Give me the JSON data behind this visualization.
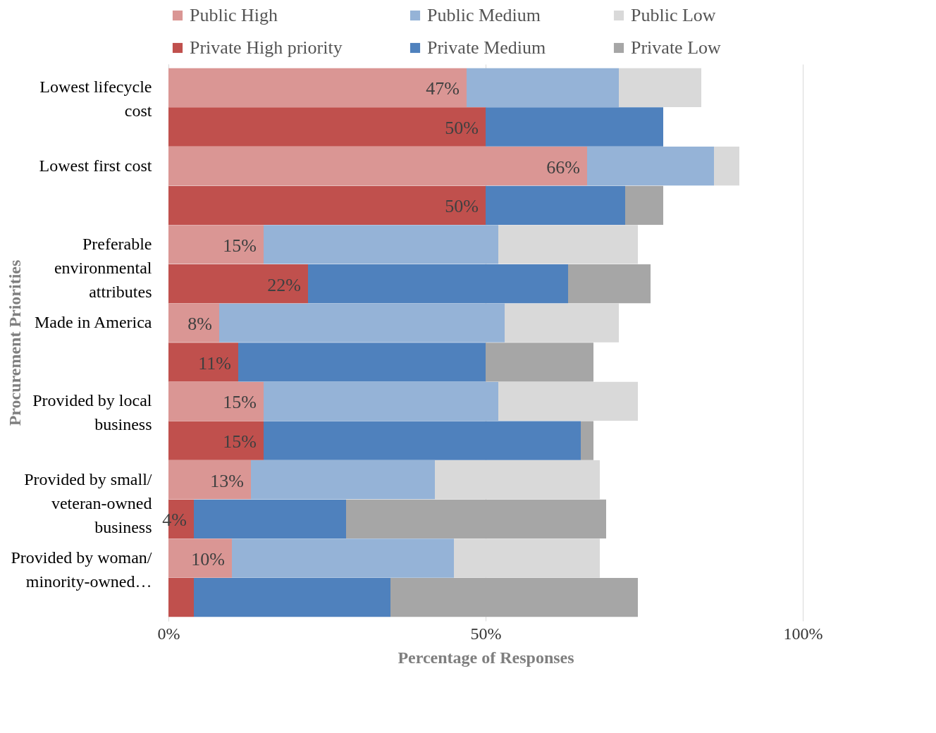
{
  "chart_data": {
    "type": "bar",
    "orientation": "horizontal",
    "stacked": true,
    "xlabel": "Percentage of Responses",
    "ylabel": "Procurement Priorities",
    "categories": [
      "Lowest lifecycle cost",
      null,
      "Lowest first cost",
      null,
      "Preferable environmental attributes",
      null,
      "Made in America",
      null,
      "Provided by local business",
      null,
      "Provided by small/ veteran-owned business",
      null,
      "Provided by woman/ minority-owned…",
      null
    ],
    "series": [
      {
        "name": "Public High",
        "color": "#da9694",
        "values": [
          47,
          null,
          66,
          null,
          15,
          null,
          8,
          null,
          15,
          null,
          13,
          null,
          10,
          null
        ],
        "value_labels": [
          "47%",
          null,
          "66%",
          null,
          "15%",
          null,
          "8%",
          null,
          "15%",
          null,
          "13%",
          null,
          "10%",
          null
        ]
      },
      {
        "name": "Public Medium",
        "color": "#95b3d7",
        "values": [
          24,
          null,
          20,
          null,
          37,
          null,
          45,
          null,
          37,
          null,
          29,
          null,
          35,
          null
        ]
      },
      {
        "name": "Public Low",
        "color": "#d9d9d9",
        "values": [
          13,
          null,
          4,
          null,
          22,
          null,
          18,
          null,
          22,
          null,
          26,
          null,
          23,
          null
        ]
      },
      {
        "name": "Private High priority",
        "color": "#c0504d",
        "values": [
          null,
          50,
          null,
          50,
          null,
          22,
          null,
          11,
          null,
          15,
          null,
          4,
          null,
          4
        ],
        "value_labels": [
          null,
          "50%",
          null,
          "50%",
          null,
          "22%",
          null,
          "11%",
          null,
          "15%",
          null,
          "4%",
          null,
          null
        ]
      },
      {
        "name": "Private Medium",
        "color": "#4f81bd",
        "values": [
          null,
          28,
          null,
          22,
          null,
          41,
          null,
          39,
          null,
          50,
          null,
          24,
          null,
          31
        ]
      },
      {
        "name": "Private Low",
        "color": "#a6a6a6",
        "values": [
          null,
          null,
          null,
          6,
          null,
          13,
          null,
          17,
          null,
          2,
          null,
          41,
          null,
          39
        ]
      }
    ],
    "xlim": [
      0,
      100
    ],
    "xticks": [
      {
        "value": 0,
        "label": "0%"
      },
      {
        "value": 50,
        "label": "50%"
      },
      {
        "value": 100,
        "label": "100%"
      }
    ],
    "grid": "x",
    "legend": "top"
  }
}
